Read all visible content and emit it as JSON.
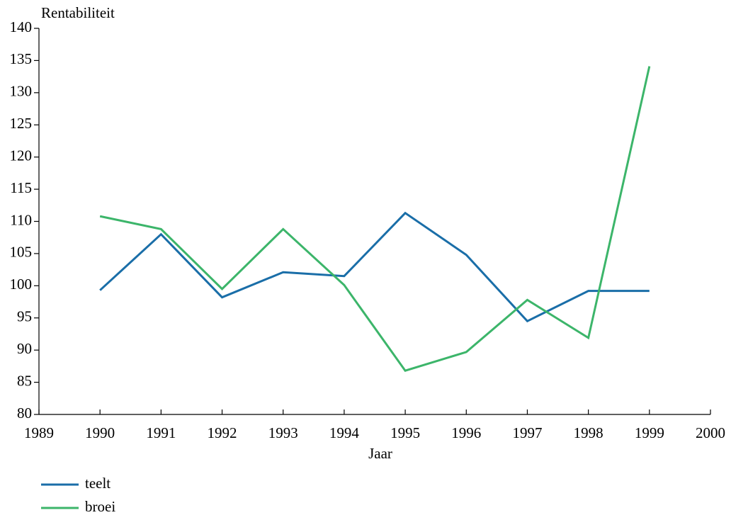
{
  "chart_data": {
    "type": "line",
    "ylabel": "Rentabiliteit",
    "xlabel": "Jaar",
    "x": [
      1990,
      1991,
      1992,
      1993,
      1994,
      1995,
      1996,
      1997,
      1998,
      1999
    ],
    "series": [
      {
        "name": "teelt",
        "color": "#1a6ea8",
        "values": [
          99.3,
          108,
          98.2,
          102.1,
          101.5,
          111.3,
          104.8,
          94.5,
          99.2,
          99.2
        ]
      },
      {
        "name": "broei",
        "color": "#3cb56a",
        "values": [
          110.8,
          108.8,
          99.5,
          108.8,
          100.1,
          86.8,
          89.7,
          97.8,
          91.9,
          134.1
        ]
      }
    ],
    "xlim": [
      1989,
      2000
    ],
    "xticks": [
      1989,
      1990,
      1991,
      1992,
      1993,
      1994,
      1995,
      1996,
      1997,
      1998,
      1999,
      2000
    ],
    "ylim": [
      80,
      140
    ],
    "yticks": [
      80,
      85,
      90,
      95,
      100,
      105,
      110,
      115,
      120,
      125,
      130,
      135,
      140
    ],
    "grid": false,
    "legend": "bottom-left"
  }
}
